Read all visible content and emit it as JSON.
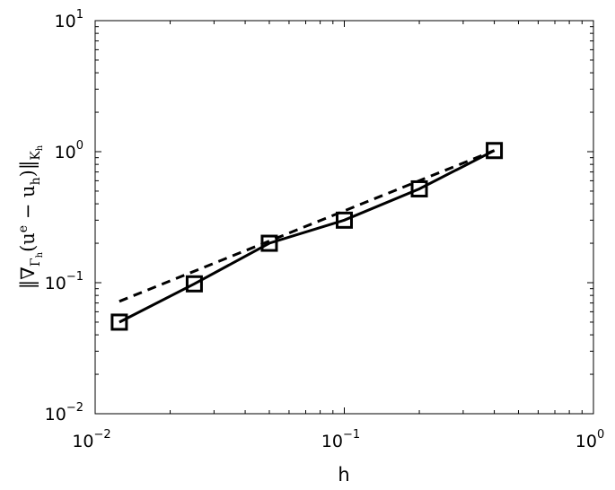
{
  "chart_data": {
    "type": "line",
    "xscale": "log",
    "yscale": "log",
    "xlim": [
      0.01,
      1
    ],
    "ylim": [
      0.01,
      10
    ],
    "xlabel": "h",
    "ylabel": "‖∇Γh(ue − uh)‖Kh",
    "xticks": [
      {
        "value": 0.01,
        "base": "10",
        "exp": "−2"
      },
      {
        "value": 0.1,
        "base": "10",
        "exp": "−1"
      },
      {
        "value": 1,
        "base": "10",
        "exp": "0"
      }
    ],
    "yticks": [
      {
        "value": 0.01,
        "base": "10",
        "exp": "−2"
      },
      {
        "value": 0.1,
        "base": "10",
        "exp": "−1"
      },
      {
        "value": 1,
        "base": "10",
        "exp": "0"
      },
      {
        "value": 10,
        "base": "10",
        "exp": "1"
      }
    ],
    "grid": false,
    "series": [
      {
        "style": "solid",
        "marker": "square",
        "color": "#000000",
        "x": [
          0.0125,
          0.025,
          0.05,
          0.1,
          0.2,
          0.4
        ],
        "y": [
          0.05,
          0.098,
          0.2,
          0.3,
          0.52,
          1.02
        ]
      },
      {
        "style": "dashed",
        "marker": "none",
        "color": "#000000",
        "x": [
          0.0125,
          0.4
        ],
        "y": [
          0.072,
          1.02
        ]
      }
    ]
  }
}
